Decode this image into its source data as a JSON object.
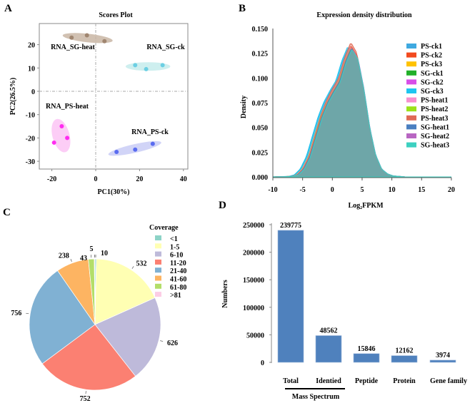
{
  "panels": {
    "a": "A",
    "b": "B",
    "c": "C",
    "d": "D"
  },
  "chart_data": [
    {
      "type": "scatter",
      "title": "Scores Plot",
      "xlabel": "PC1(30%)",
      "ylabel": "PC2(26.5%)",
      "xlim": [
        -25,
        43
      ],
      "ylim": [
        -34,
        28
      ],
      "xticks": [
        -20,
        0,
        20,
        40
      ],
      "yticks": [
        20,
        10,
        0,
        -10,
        -20,
        -30
      ],
      "groups": [
        {
          "name": "RNA_SG-heat",
          "color": "#a08670",
          "ellipse": "#c9b6a5",
          "points": [
            [
              -11,
              23
            ],
            [
              -4,
              24
            ],
            [
              4,
              21.5
            ]
          ]
        },
        {
          "name": "RNA_SG-ck",
          "color": "#6ccfe3",
          "ellipse": "#c6ecec",
          "points": [
            [
              18,
              11.2
            ],
            [
              23,
              9.5
            ],
            [
              30.5,
              11.2
            ]
          ]
        },
        {
          "name": "RNA_PS-heat",
          "color": "#ff2cf0",
          "ellipse": "#fbc4f4",
          "points": [
            [
              -15.5,
              -15
            ],
            [
              -19,
              -22
            ],
            [
              -13,
              -20
            ]
          ]
        },
        {
          "name": "RNA_PS-ck",
          "color": "#5a6cf0",
          "ellipse": "#c9ccf6",
          "points": [
            [
              9.5,
              -26
            ],
            [
              18,
              -25
            ],
            [
              26,
              -22.5
            ]
          ]
        }
      ]
    },
    {
      "type": "area",
      "title": "Expression density distribution",
      "xlabel": "Log2FPKM",
      "xlabel_base": "Log",
      "xlabel_sub": "2",
      "xlabel_rest": "FPKM",
      "ylabel": "Density",
      "xlim": [
        -10,
        20
      ],
      "ylim": [
        0,
        0.15
      ],
      "xticks": [
        -10,
        -5,
        0,
        5,
        10,
        15,
        20
      ],
      "yticks": [
        "0.000",
        "0.025",
        "0.050",
        "0.075",
        "0.100",
        "0.125",
        "0.150"
      ],
      "base_curve": {
        "x": [
          -10,
          -7,
          -6,
          -5,
          -4,
          -3,
          -2,
          -1,
          0,
          1,
          2,
          3,
          4,
          5,
          6,
          7,
          8,
          9,
          10,
          12,
          20
        ],
        "y": [
          0,
          0.0005,
          0.002,
          0.008,
          0.02,
          0.04,
          0.06,
          0.075,
          0.086,
          0.096,
          0.116,
          0.13,
          0.12,
          0.09,
          0.05,
          0.022,
          0.008,
          0.003,
          0.001,
          0,
          0
        ]
      },
      "legend_position": "right",
      "series": [
        {
          "name": "PS-ck1",
          "color": "#3fa9e0",
          "peak": 0.131,
          "shift": -0.3
        },
        {
          "name": "PS-ck2",
          "color": "#f24a1e",
          "peak": 0.133,
          "shift": 0.1
        },
        {
          "name": "PS-ck3",
          "color": "#ffc200",
          "peak": 0.13,
          "shift": -0.1
        },
        {
          "name": "SG-ck1",
          "color": "#22b02a",
          "peak": 0.129,
          "shift": 0.2
        },
        {
          "name": "SG-ck2",
          "color": "#d84ee8",
          "peak": 0.13,
          "shift": 0.3
        },
        {
          "name": "SG-ck3",
          "color": "#1ec5f0",
          "peak": 0.132,
          "shift": -0.4
        },
        {
          "name": "PS-heat1",
          "color": "#f78fcf",
          "peak": 0.131,
          "shift": 0.0
        },
        {
          "name": "PS-heat2",
          "color": "#9be21a",
          "peak": 0.13,
          "shift": 0.1
        },
        {
          "name": "PS-heat3",
          "color": "#e06a55",
          "peak": 0.136,
          "shift": 0.1
        },
        {
          "name": "SG-heat1",
          "color": "#4a7fc0",
          "peak": 0.13,
          "shift": 0.2
        },
        {
          "name": "SG-heat2",
          "color": "#b866c2",
          "peak": 0.129,
          "shift": 0.3
        },
        {
          "name": "SG-heat3",
          "color": "#3dd0c0",
          "peak": 0.129,
          "shift": 0.3
        }
      ],
      "fill_color": "#6ea6a8"
    },
    {
      "type": "pie",
      "legend_title": "Coverage",
      "legend_position": "top-right",
      "slices": [
        {
          "label": "<1",
          "value": 10,
          "color": "#8dd3c7"
        },
        {
          "label": "1-5",
          "value": 532,
          "color": "#ffffb3"
        },
        {
          "label": "6-10",
          "value": 626,
          "color": "#bebada"
        },
        {
          "label": "11-20",
          "value": 752,
          "color": "#fb8072"
        },
        {
          "label": "21-40",
          "value": 756,
          "color": "#80b1d3"
        },
        {
          "label": "41-60",
          "value": 238,
          "color": "#fdb462"
        },
        {
          "label": "61-80",
          "value": 43,
          "color": "#b3de69"
        },
        {
          "label": ">81",
          "value": 5,
          "color": "#fccde5"
        }
      ]
    },
    {
      "type": "bar",
      "ylabel": "Numbers",
      "ylim": [
        0,
        250000
      ],
      "yticks": [
        "0",
        "50000",
        "100000",
        "150000",
        "200000",
        "250000"
      ],
      "categories": [
        "Total",
        "Identied",
        "Peptide",
        "Protein",
        "Gene family"
      ],
      "values": [
        239775,
        48562,
        15846,
        12162,
        3974
      ],
      "bar_color": "#4f81bd",
      "group_label": "Mass Spectrum"
    }
  ]
}
